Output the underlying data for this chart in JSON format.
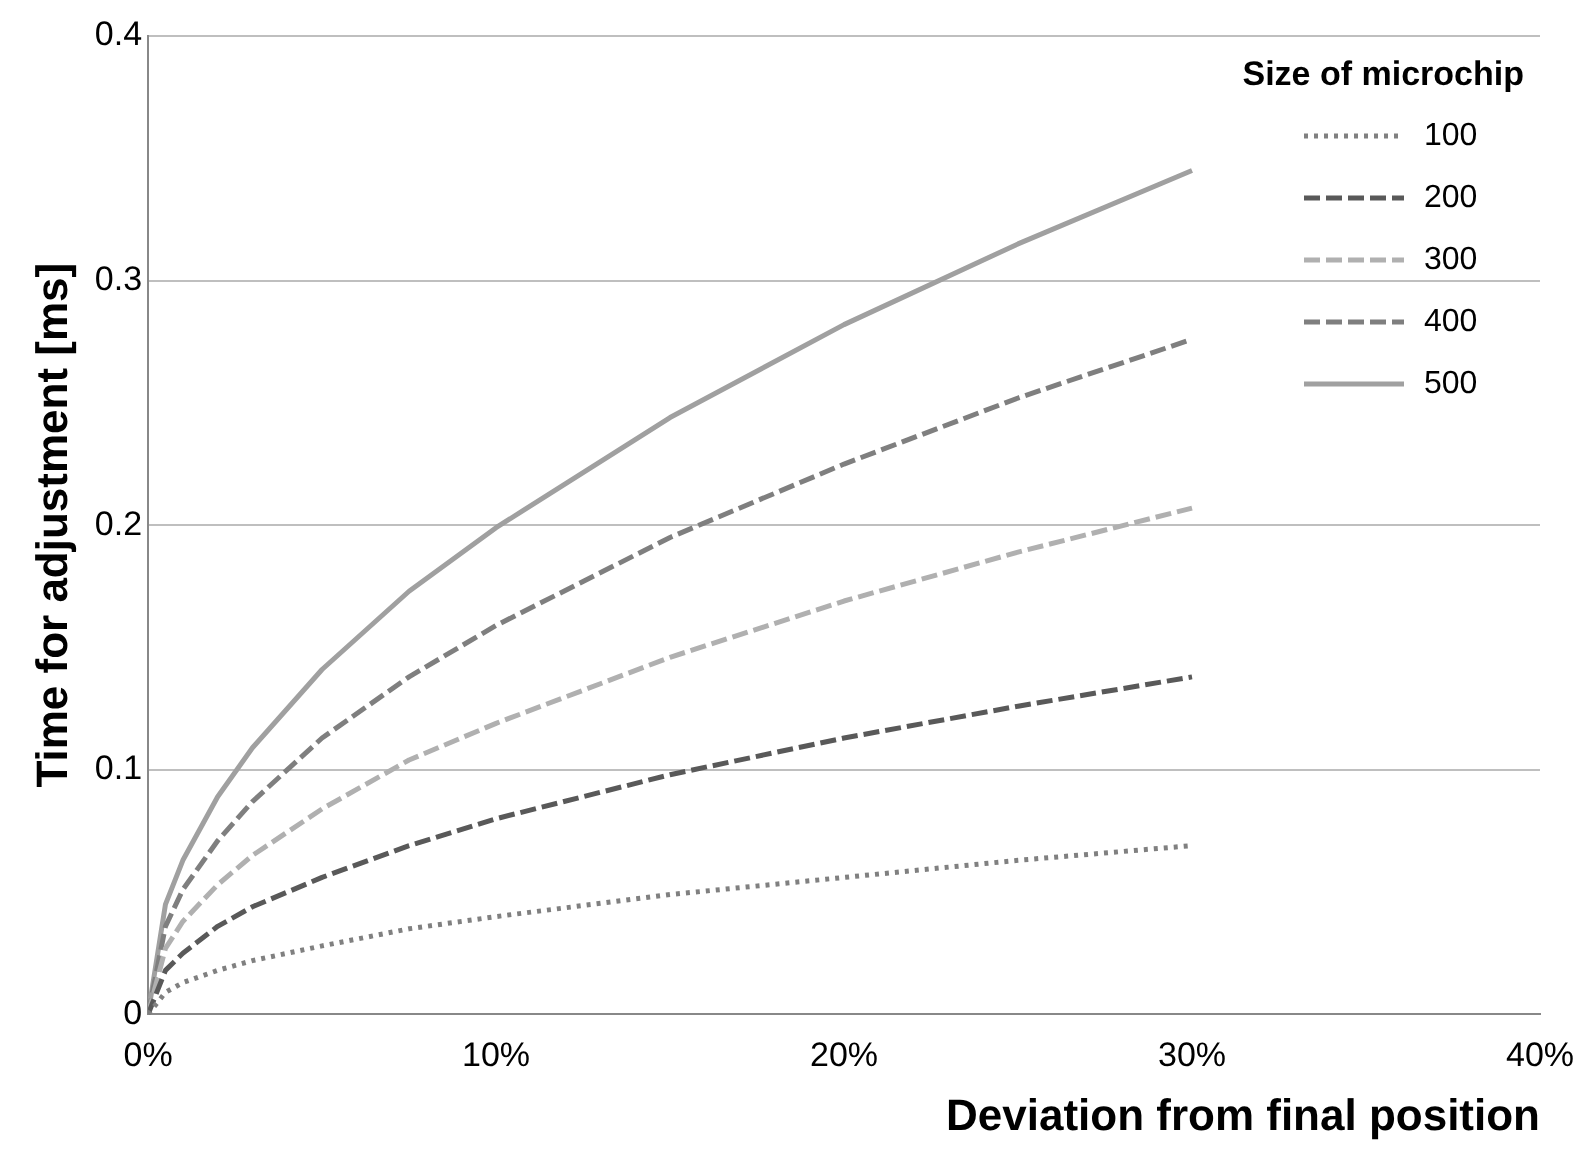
{
  "chart_data": {
    "type": "line",
    "xlabel": "Deviation from final position",
    "ylabel": "Time for adjustment [ms]",
    "legend_title": "Size of microchip",
    "legend": "top right",
    "grid": "y",
    "marker": "none",
    "x": [
      0,
      0.5,
      1,
      2,
      3,
      5,
      7.5,
      10,
      15,
      20,
      25,
      30
    ],
    "xlim": [
      0,
      40
    ],
    "xticks": [
      {
        "value": 0,
        "label": "0%"
      },
      {
        "value": 10,
        "label": "10%"
      },
      {
        "value": 20,
        "label": "20%"
      },
      {
        "value": 30,
        "label": "30%"
      },
      {
        "value": 40,
        "label": "40%"
      }
    ],
    "ylim": [
      0,
      0.4
    ],
    "yticks": [
      0,
      0.1,
      0.2,
      0.3,
      0.4
    ],
    "series": [
      {
        "name": "100",
        "color": "#808080",
        "line_style": "dotted",
        "values": [
          0,
          0.009,
          0.013,
          0.018,
          0.022,
          0.028,
          0.035,
          0.04,
          0.049,
          0.056,
          0.063,
          0.069
        ]
      },
      {
        "name": "200",
        "color": "#595959",
        "line_style": "dashed",
        "values": [
          0,
          0.018,
          0.025,
          0.036,
          0.044,
          0.056,
          0.069,
          0.08,
          0.098,
          0.113,
          0.126,
          0.138
        ]
      },
      {
        "name": "300",
        "color": "#b0b0b0",
        "line_style": "dashed",
        "values": [
          0,
          0.027,
          0.038,
          0.053,
          0.065,
          0.084,
          0.104,
          0.119,
          0.146,
          0.169,
          0.189,
          0.207
        ]
      },
      {
        "name": "400",
        "color": "#7f7f7f",
        "line_style": "dashed",
        "values": [
          0,
          0.036,
          0.051,
          0.071,
          0.087,
          0.113,
          0.138,
          0.159,
          0.195,
          0.225,
          0.252,
          0.276
        ]
      },
      {
        "name": "500",
        "color": "#a0a0a0",
        "line_style": "solid",
        "values": [
          0,
          0.045,
          0.063,
          0.089,
          0.109,
          0.141,
          0.173,
          0.199,
          0.244,
          0.282,
          0.315,
          0.345
        ]
      }
    ]
  }
}
